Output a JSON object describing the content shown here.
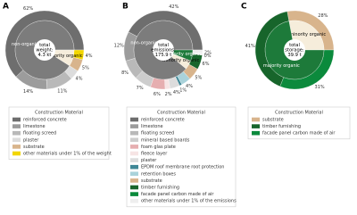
{
  "chart_data": [
    {
      "type": "pie",
      "panel_label": "A",
      "center_label": [
        "total",
        "weight:",
        "4.3 kt"
      ],
      "outer": {
        "categories": [
          "reinforced concrete",
          "limestone",
          "floating screed",
          "plaster",
          "substrate",
          "other materials under 1% of the weight"
        ],
        "values": [
          62,
          14,
          11,
          4,
          5,
          4
        ],
        "value_labels": [
          "62%",
          "14%",
          "11%",
          "4%",
          "5%",
          "4%"
        ],
        "colors": [
          "#6e6e6e",
          "#9c9c9c",
          "#b9b9b9",
          "#dcdcdc",
          "#d8b48c",
          "#f2d600"
        ]
      },
      "inner": {
        "categories": [
          "non-organic",
          "minority organic"
        ],
        "values": [
          91,
          9
        ],
        "colors": [
          "#7c7c7c",
          "#f6eddb"
        ]
      },
      "legend_title": "Construction Material"
    },
    {
      "type": "pie",
      "panel_label": "B",
      "center_label": [
        "total",
        "emissions:",
        "175.9 t"
      ],
      "outer": {
        "categories": [
          "reinforced concrete",
          "limestone",
          "floating screed",
          "mineral based boards",
          "foam glas plate",
          "fleece layer",
          "plaster",
          "EPDM roof membrane root protection",
          "retention boxes",
          "substrate",
          "timber furnishing",
          "facade panel carbon made of air",
          "other materials under 1% of the emissions"
        ],
        "values": [
          42,
          12,
          8,
          7,
          6,
          2,
          4,
          1,
          4,
          5,
          6,
          0,
          2
        ],
        "value_labels": [
          "42%",
          "12%",
          "8%",
          "7%",
          "6%",
          "2%",
          "4%",
          "1%",
          "4%",
          "5%",
          "6%",
          "0%",
          "2%"
        ],
        "colors": [
          "#6e6e6e",
          "#9c9c9c",
          "#b9b9b9",
          "#cdcdcd",
          "#e6aeb0",
          "#f6e4e4",
          "#dcdcdc",
          "#3f8796",
          "#a9d2da",
          "#d8b48c",
          "#17652b",
          "#0b8a3c",
          "#eeeeee"
        ]
      },
      "inner": {
        "categories": [
          "non-organic",
          "minority organic",
          "majority organic"
        ],
        "values": [
          89,
          5,
          6
        ],
        "colors": [
          "#7c7c7c",
          "#f6eddb",
          "#1d7a3a"
        ]
      },
      "legend_title": "Construction Material"
    },
    {
      "type": "pie",
      "panel_label": "C",
      "center_label": [
        "total",
        "storage:",
        "39.9 t"
      ],
      "outer": {
        "categories": [
          "substrate",
          "timber furnishing",
          "facade panel carbon made of air"
        ],
        "values": [
          28,
          41,
          31
        ],
        "value_labels": [
          "28%",
          "41%",
          "31%"
        ],
        "colors": [
          "#d8b48c",
          "#17652b",
          "#0b8a3c"
        ]
      },
      "inner": {
        "categories": [
          "minority organic",
          "majority organic"
        ],
        "values": [
          28,
          72
        ],
        "colors": [
          "#f6eddb",
          "#1d7a3a"
        ]
      },
      "legend_title": "Construction Material"
    }
  ]
}
